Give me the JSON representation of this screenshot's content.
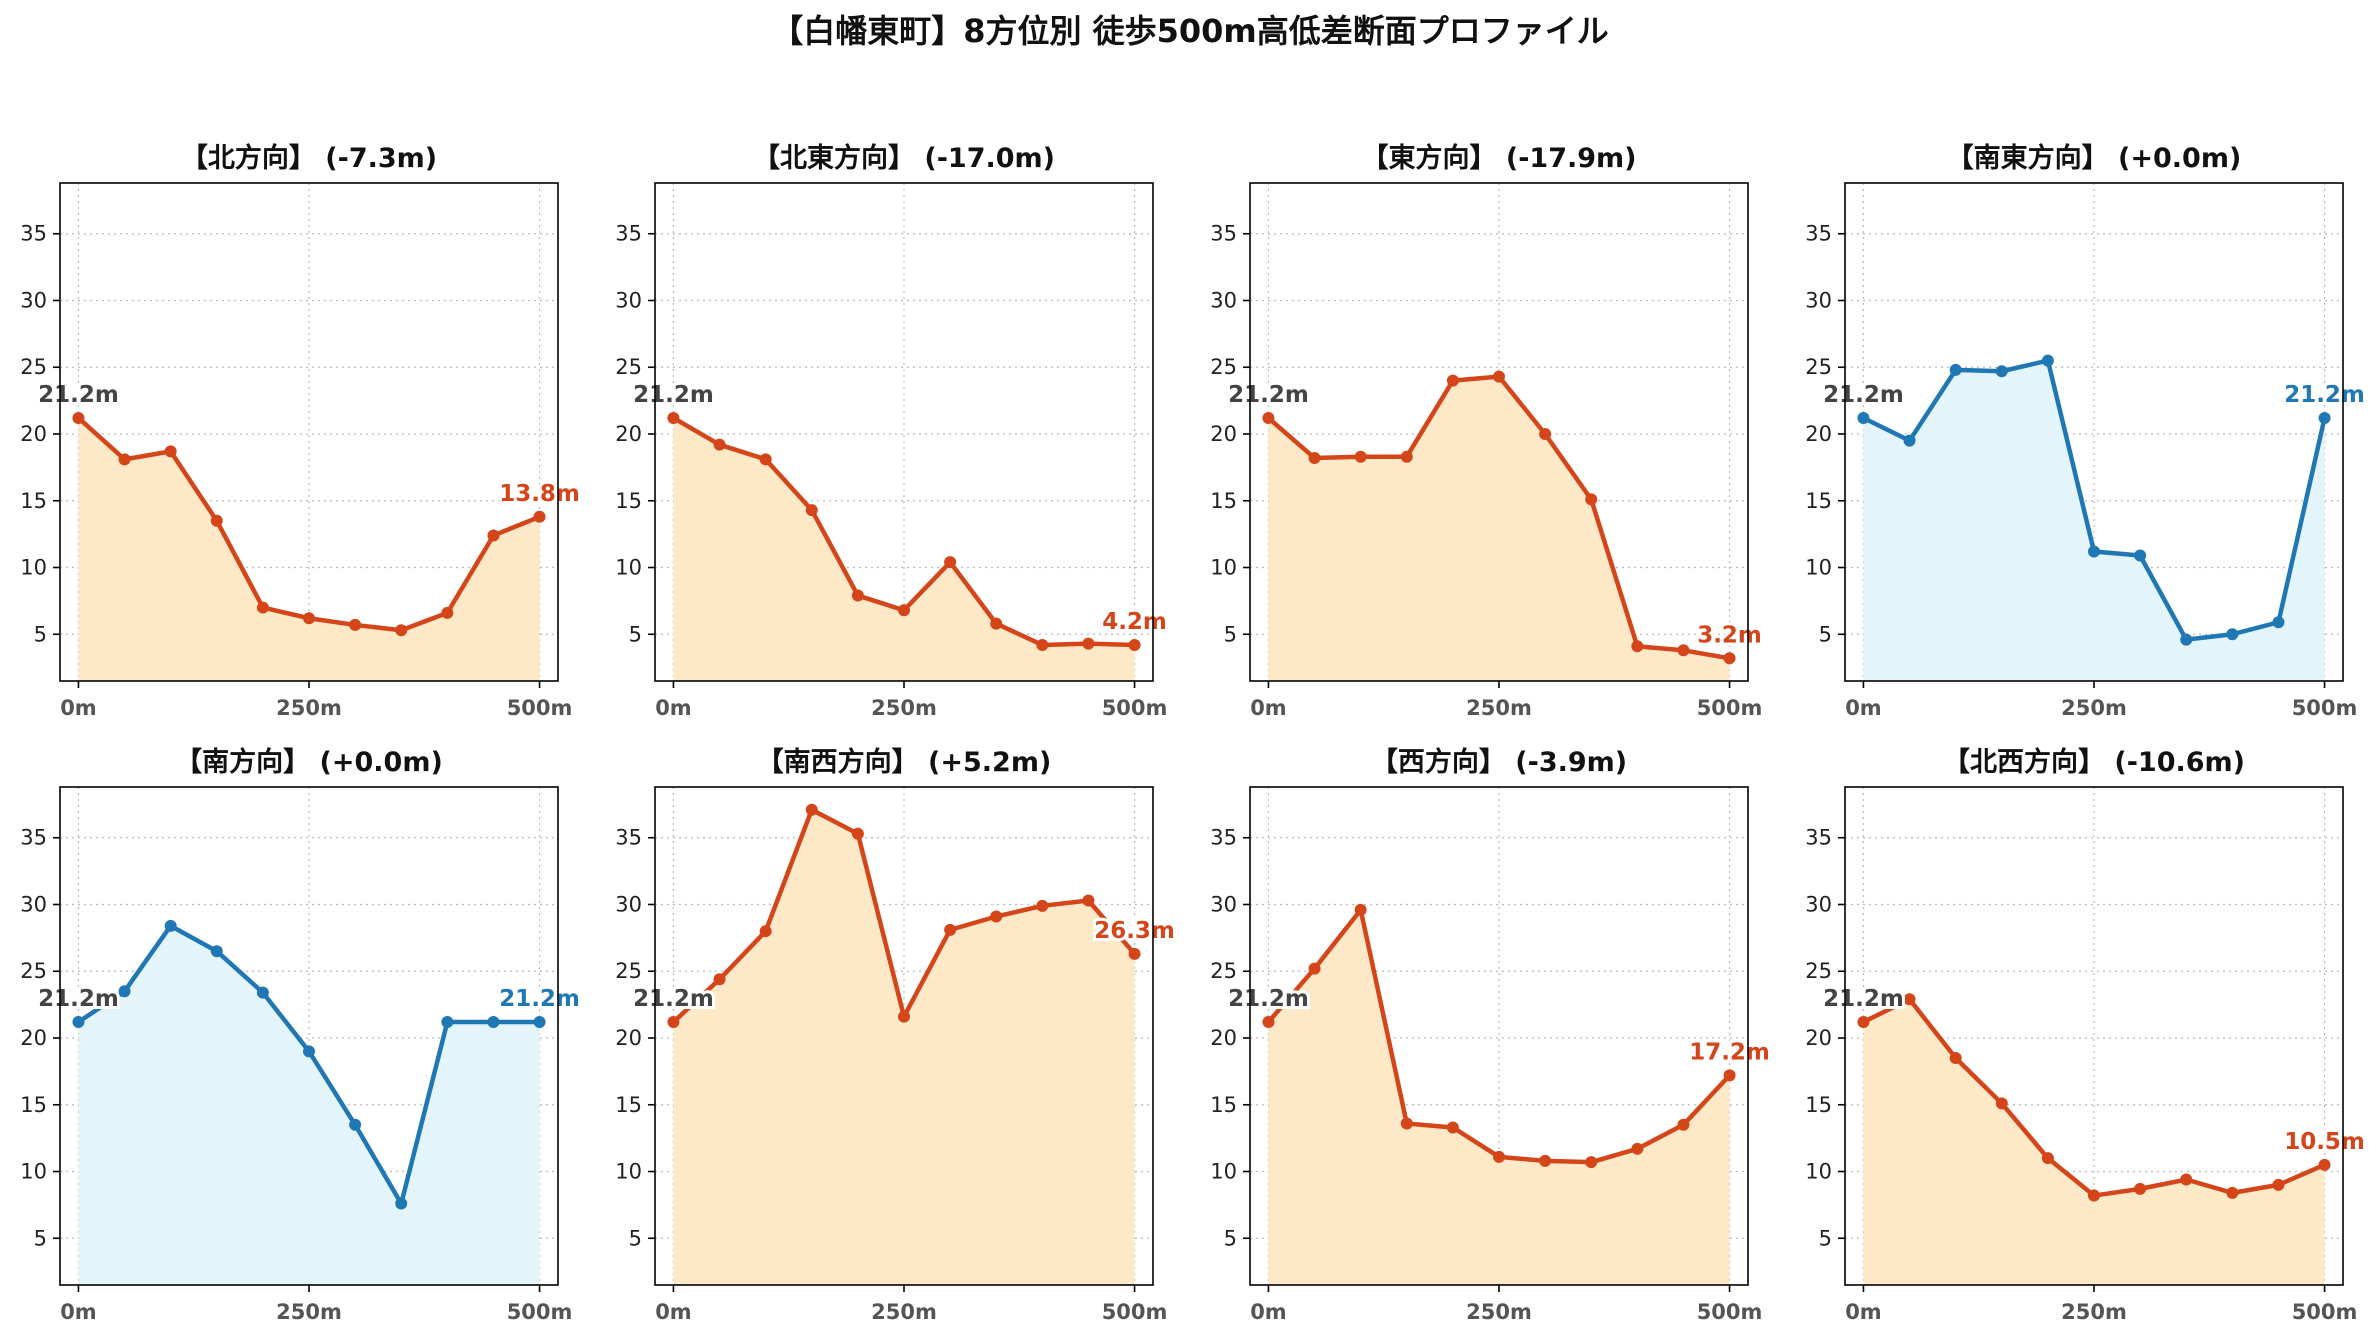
{
  "page": {
    "title": "【白幡東町】8方位別 徒歩500m高低差断面プロファイル"
  },
  "colors": {
    "down": "#d4451a",
    "down_fill": "#fde9c8",
    "flat": "#1f77b4",
    "flat_fill": "#e3f4fb",
    "start_label": "#444444",
    "axis": "#000000",
    "grid": "#bbbbbb",
    "tick_text": "#555555"
  },
  "chart_data": [
    {
      "type": "area",
      "title": "【北方向】 (-7.3m)",
      "style": "down",
      "x": [
        0,
        50,
        100,
        150,
        200,
        250,
        300,
        350,
        400,
        450,
        500
      ],
      "y": [
        21.2,
        18.1,
        18.7,
        13.5,
        7.0,
        6.2,
        5.7,
        5.3,
        6.6,
        12.4,
        13.8
      ],
      "start_label": "21.2m",
      "end_label": "13.8m",
      "xlim": [
        -20,
        520
      ],
      "ylim": [
        1.5,
        38.8
      ],
      "xticks": [
        0,
        250,
        500
      ],
      "xtick_labels": [
        "0m",
        "250m",
        "500m"
      ],
      "yticks": [
        5,
        10,
        15,
        20,
        25,
        30,
        35
      ],
      "ytick_labels": [
        "5",
        "10",
        "15",
        "20",
        "25",
        "30",
        "35"
      ]
    },
    {
      "type": "area",
      "title": "【北東方向】 (-17.0m)",
      "style": "down",
      "x": [
        0,
        50,
        100,
        150,
        200,
        250,
        300,
        350,
        400,
        450,
        500
      ],
      "y": [
        21.2,
        19.2,
        18.1,
        14.3,
        7.9,
        6.8,
        10.4,
        5.8,
        4.2,
        4.3,
        4.2
      ],
      "start_label": "21.2m",
      "end_label": "4.2m",
      "xlim": [
        -20,
        520
      ],
      "ylim": [
        1.5,
        38.8
      ],
      "xticks": [
        0,
        250,
        500
      ],
      "xtick_labels": [
        "0m",
        "250m",
        "500m"
      ],
      "yticks": [
        5,
        10,
        15,
        20,
        25,
        30,
        35
      ],
      "ytick_labels": [
        "5",
        "10",
        "15",
        "20",
        "25",
        "30",
        "35"
      ]
    },
    {
      "type": "area",
      "title": "【東方向】 (-17.9m)",
      "style": "down",
      "x": [
        0,
        50,
        100,
        150,
        200,
        250,
        300,
        350,
        400,
        450,
        500
      ],
      "y": [
        21.2,
        18.2,
        18.3,
        18.3,
        24.0,
        24.3,
        20.0,
        15.1,
        4.1,
        3.8,
        3.2
      ],
      "start_label": "21.2m",
      "end_label": "3.2m",
      "xlim": [
        -20,
        520
      ],
      "ylim": [
        1.5,
        38.8
      ],
      "xticks": [
        0,
        250,
        500
      ],
      "xtick_labels": [
        "0m",
        "250m",
        "500m"
      ],
      "yticks": [
        5,
        10,
        15,
        20,
        25,
        30,
        35
      ],
      "ytick_labels": [
        "5",
        "10",
        "15",
        "20",
        "25",
        "30",
        "35"
      ]
    },
    {
      "type": "area",
      "title": "【南東方向】 (+0.0m)",
      "style": "flat",
      "x": [
        0,
        50,
        100,
        150,
        200,
        250,
        300,
        350,
        400,
        450,
        500
      ],
      "y": [
        21.2,
        19.5,
        24.8,
        24.7,
        25.5,
        11.2,
        10.9,
        4.6,
        5.0,
        5.9,
        21.2
      ],
      "start_label": "21.2m",
      "end_label": "21.2m",
      "xlim": [
        -20,
        520
      ],
      "ylim": [
        1.5,
        38.8
      ],
      "xticks": [
        0,
        250,
        500
      ],
      "xtick_labels": [
        "0m",
        "250m",
        "500m"
      ],
      "yticks": [
        5,
        10,
        15,
        20,
        25,
        30,
        35
      ],
      "ytick_labels": [
        "5",
        "10",
        "15",
        "20",
        "25",
        "30",
        "35"
      ]
    },
    {
      "type": "area",
      "title": "【南方向】 (+0.0m)",
      "style": "flat",
      "x": [
        0,
        50,
        100,
        150,
        200,
        250,
        300,
        350,
        400,
        450,
        500
      ],
      "y": [
        21.2,
        23.5,
        28.4,
        26.5,
        23.4,
        19.0,
        13.5,
        7.6,
        21.2,
        21.2,
        21.2
      ],
      "start_label": "21.2m",
      "end_label": "21.2m",
      "xlim": [
        -20,
        520
      ],
      "ylim": [
        1.5,
        38.8
      ],
      "xticks": [
        0,
        250,
        500
      ],
      "xtick_labels": [
        "0m",
        "250m",
        "500m"
      ],
      "yticks": [
        5,
        10,
        15,
        20,
        25,
        30,
        35
      ],
      "ytick_labels": [
        "5",
        "10",
        "15",
        "20",
        "25",
        "30",
        "35"
      ]
    },
    {
      "type": "area",
      "title": "【南西方向】 (+5.2m)",
      "style": "down",
      "x": [
        0,
        50,
        100,
        150,
        200,
        250,
        300,
        350,
        400,
        450,
        500
      ],
      "y": [
        21.2,
        24.4,
        28.0,
        37.1,
        35.3,
        21.6,
        28.1,
        29.1,
        29.9,
        30.3,
        26.3
      ],
      "start_label": "21.2m",
      "end_label": "26.3m",
      "xlim": [
        -20,
        520
      ],
      "ylim": [
        1.5,
        38.8
      ],
      "xticks": [
        0,
        250,
        500
      ],
      "xtick_labels": [
        "0m",
        "250m",
        "500m"
      ],
      "yticks": [
        5,
        10,
        15,
        20,
        25,
        30,
        35
      ],
      "ytick_labels": [
        "5",
        "10",
        "15",
        "20",
        "25",
        "30",
        "35"
      ]
    },
    {
      "type": "area",
      "title": "【西方向】 (-3.9m)",
      "style": "down",
      "x": [
        0,
        50,
        100,
        150,
        200,
        250,
        300,
        350,
        400,
        450,
        500
      ],
      "y": [
        21.2,
        25.2,
        29.6,
        13.6,
        13.3,
        11.1,
        10.8,
        10.7,
        11.7,
        13.5,
        17.2
      ],
      "start_label": "21.2m",
      "end_label": "17.2m",
      "xlim": [
        -20,
        520
      ],
      "ylim": [
        1.5,
        38.8
      ],
      "xticks": [
        0,
        250,
        500
      ],
      "xtick_labels": [
        "0m",
        "250m",
        "500m"
      ],
      "yticks": [
        5,
        10,
        15,
        20,
        25,
        30,
        35
      ],
      "ytick_labels": [
        "5",
        "10",
        "15",
        "20",
        "25",
        "30",
        "35"
      ]
    },
    {
      "type": "area",
      "title": "【北西方向】 (-10.6m)",
      "style": "down",
      "x": [
        0,
        50,
        100,
        150,
        200,
        250,
        300,
        350,
        400,
        450,
        500
      ],
      "y": [
        21.2,
        22.9,
        18.5,
        15.1,
        11.0,
        8.2,
        8.7,
        9.4,
        8.4,
        9.0,
        10.5
      ],
      "start_label": "21.2m",
      "end_label": "10.5m",
      "xlim": [
        -20,
        520
      ],
      "ylim": [
        1.5,
        38.8
      ],
      "xticks": [
        0,
        250,
        500
      ],
      "xtick_labels": [
        "0m",
        "250m",
        "500m"
      ],
      "yticks": [
        5,
        10,
        15,
        20,
        25,
        30,
        35
      ],
      "ytick_labels": [
        "5",
        "10",
        "15",
        "20",
        "25",
        "30",
        "35"
      ]
    }
  ]
}
